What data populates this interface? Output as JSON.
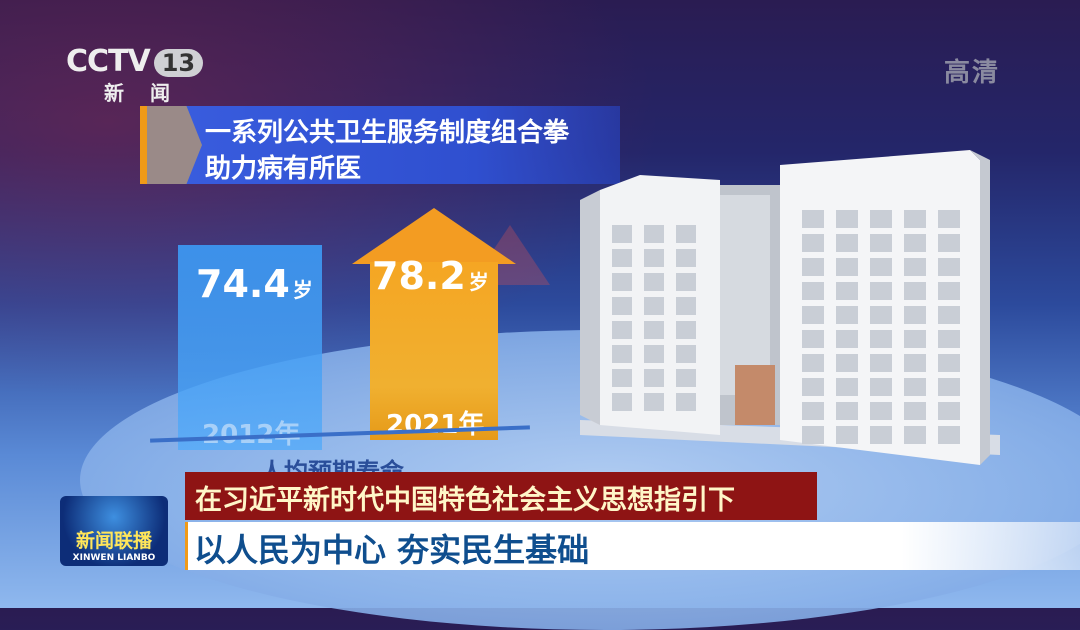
{
  "logo": {
    "brand": "CCTV",
    "channel": "13",
    "sub": "新闻"
  },
  "quality_badge": "高清",
  "infographic_title": {
    "line1": "一系列公共卫生服务制度组合拳",
    "line2": "助力病有所医"
  },
  "chart_data": {
    "type": "bar",
    "categories": [
      "2012年",
      "2021年"
    ],
    "values": [
      74.4,
      78.2
    ],
    "value_labels": [
      "74.4",
      "78.2"
    ],
    "unit": "岁",
    "xlabel": "人均预期寿命",
    "colors": [
      "#4aa0f0",
      "#f5a623"
    ]
  },
  "program_logo": {
    "cn": "新闻联播",
    "en": "XINWEN LIANBO"
  },
  "banner": {
    "top": "在习近平新时代中国特色社会主义思想指引下",
    "bottom": "以人民为中心 夯实民生基础"
  }
}
